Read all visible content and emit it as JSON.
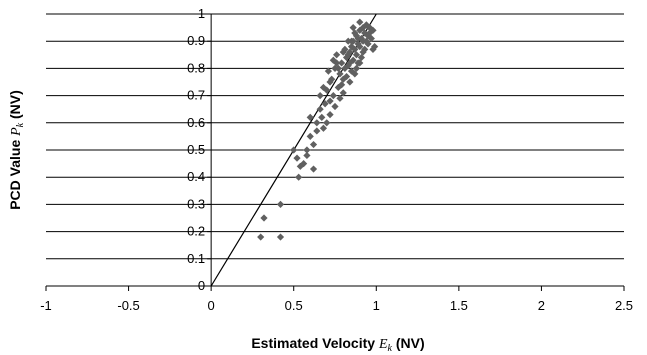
{
  "chart_data": {
    "type": "scatter",
    "xlabel_prefix": "Estimated Velocity",
    "xlabel_var": "E",
    "xlabel_sub": "k",
    "xlabel_suffix": "(NV)",
    "ylabel_prefix": "PCD Value",
    "ylabel_var": "P",
    "ylabel_sub": "k",
    "ylabel_suffix": "(NV)",
    "xlim": [
      -1,
      2.5
    ],
    "ylim": [
      0,
      1
    ],
    "x_ticks": [
      "-1",
      "-0.5",
      "0",
      "0.5",
      "1",
      "1.5",
      "2",
      "2.5"
    ],
    "y_ticks": [
      "0",
      "0.1",
      "0.2",
      "0.3",
      "0.4",
      "0.5",
      "0.6",
      "0.7",
      "0.8",
      "0.9",
      "1"
    ],
    "grid": "horizontal",
    "reference_line": {
      "x": [
        0,
        1
      ],
      "y": [
        0,
        1
      ]
    },
    "marker_color": "#606060",
    "points": [
      [
        0.3,
        0.18
      ],
      [
        0.32,
        0.25
      ],
      [
        0.42,
        0.18
      ],
      [
        0.42,
        0.3
      ],
      [
        0.5,
        0.5
      ],
      [
        0.52,
        0.47
      ],
      [
        0.53,
        0.4
      ],
      [
        0.54,
        0.44
      ],
      [
        0.56,
        0.45
      ],
      [
        0.58,
        0.5
      ],
      [
        0.6,
        0.55
      ],
      [
        0.62,
        0.43
      ],
      [
        0.62,
        0.52
      ],
      [
        0.64,
        0.6
      ],
      [
        0.64,
        0.57
      ],
      [
        0.66,
        0.65
      ],
      [
        0.67,
        0.62
      ],
      [
        0.68,
        0.58
      ],
      [
        0.69,
        0.67
      ],
      [
        0.7,
        0.72
      ],
      [
        0.7,
        0.6
      ],
      [
        0.72,
        0.63
      ],
      [
        0.72,
        0.68
      ],
      [
        0.73,
        0.76
      ],
      [
        0.74,
        0.7
      ],
      [
        0.75,
        0.66
      ],
      [
        0.75,
        0.8
      ],
      [
        0.76,
        0.85
      ],
      [
        0.77,
        0.73
      ],
      [
        0.78,
        0.69
      ],
      [
        0.78,
        0.78
      ],
      [
        0.79,
        0.82
      ],
      [
        0.8,
        0.76
      ],
      [
        0.8,
        0.71
      ],
      [
        0.81,
        0.8
      ],
      [
        0.82,
        0.84
      ],
      [
        0.82,
        0.77
      ],
      [
        0.83,
        0.81
      ],
      [
        0.84,
        0.75
      ],
      [
        0.84,
        0.86
      ],
      [
        0.85,
        0.88
      ],
      [
        0.85,
        0.79
      ],
      [
        0.86,
        0.83
      ],
      [
        0.86,
        0.9
      ],
      [
        0.87,
        0.87
      ],
      [
        0.87,
        0.78
      ],
      [
        0.88,
        0.92
      ],
      [
        0.88,
        0.85
      ],
      [
        0.89,
        0.89
      ],
      [
        0.89,
        0.82
      ],
      [
        0.9,
        0.94
      ],
      [
        0.9,
        0.88
      ],
      [
        0.91,
        0.91
      ],
      [
        0.91,
        0.84
      ],
      [
        0.92,
        0.95
      ],
      [
        0.92,
        0.9
      ],
      [
        0.93,
        0.93
      ],
      [
        0.93,
        0.87
      ],
      [
        0.94,
        0.96
      ],
      [
        0.95,
        0.92
      ],
      [
        0.96,
        0.95
      ],
      [
        0.97,
        0.91
      ],
      [
        0.98,
        0.94
      ],
      [
        0.99,
        0.88
      ],
      [
        0.98,
        0.87
      ],
      [
        0.95,
        0.89
      ],
      [
        0.83,
        0.9
      ],
      [
        0.8,
        0.86
      ],
      [
        0.76,
        0.82
      ],
      [
        0.72,
        0.75
      ],
      [
        0.68,
        0.73
      ],
      [
        0.66,
        0.7
      ],
      [
        0.71,
        0.79
      ],
      [
        0.74,
        0.83
      ],
      [
        0.86,
        0.95
      ],
      [
        0.9,
        0.97
      ],
      [
        0.89,
        0.91
      ],
      [
        0.84,
        0.82
      ],
      [
        0.79,
        0.74
      ],
      [
        0.77,
        0.8
      ],
      [
        0.81,
        0.87
      ],
      [
        0.87,
        0.93
      ],
      [
        0.92,
        0.86
      ],
      [
        0.94,
        0.9
      ],
      [
        0.96,
        0.93
      ],
      [
        0.88,
        0.8
      ],
      [
        0.83,
        0.85
      ],
      [
        0.85,
        0.9
      ],
      [
        0.9,
        0.82
      ],
      [
        0.6,
        0.62
      ],
      [
        0.58,
        0.48
      ]
    ]
  }
}
